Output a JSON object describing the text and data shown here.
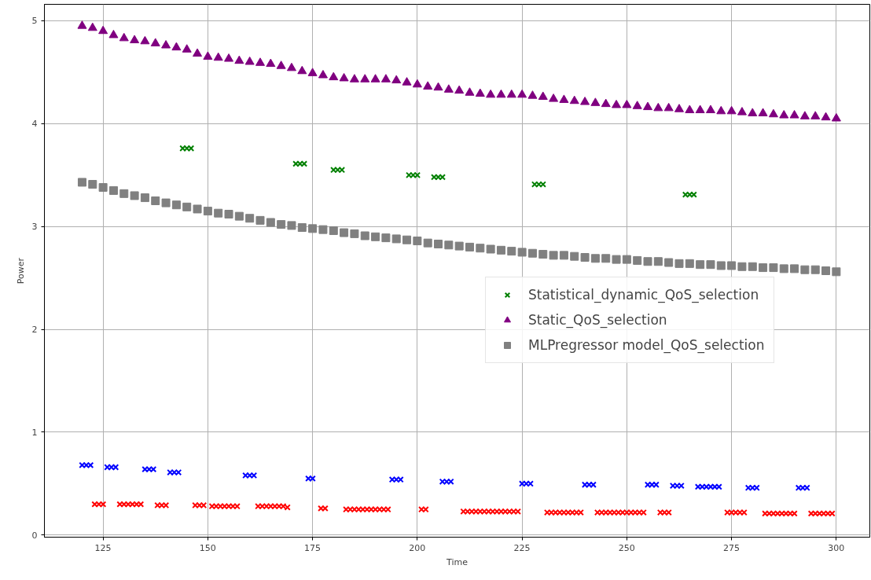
{
  "chart_data": {
    "type": "scatter",
    "xlabel": "Time",
    "ylabel": "Power",
    "xlim": [
      111,
      308
    ],
    "xticks": [
      125,
      150,
      175,
      200,
      225,
      250,
      275,
      300
    ],
    "ylim": [
      -0.02,
      5.16
    ],
    "yticks": [
      0,
      1,
      2,
      3,
      4,
      5
    ],
    "grid": true,
    "legend": "right",
    "series": [
      {
        "name": "Statistical_dynamic_QoS_selection",
        "marker": "cross",
        "x": [
          144,
          145,
          146,
          171,
          172,
          173,
          180,
          181,
          182,
          198,
          199,
          200,
          204,
          205,
          206,
          228,
          229,
          230,
          264,
          265,
          266,
          120,
          121,
          122,
          126,
          127,
          128,
          135,
          136,
          137,
          141,
          142,
          143,
          159,
          160,
          161,
          174,
          175,
          194,
          195,
          196,
          206,
          207,
          208,
          225,
          226,
          227,
          240,
          241,
          242,
          255,
          256,
          257,
          261,
          262,
          263,
          267,
          268,
          269,
          270,
          271,
          272,
          279,
          280,
          281,
          291,
          292,
          293,
          123,
          124,
          125,
          129,
          130,
          131,
          132,
          133,
          134,
          138,
          139,
          140,
          147,
          148,
          149,
          151,
          152,
          153,
          154,
          155,
          156,
          157,
          162,
          163,
          164,
          165,
          166,
          167,
          168,
          169,
          177,
          178,
          183,
          184,
          185,
          186,
          187,
          188,
          189,
          190,
          191,
          192,
          193,
          201,
          202,
          211,
          212,
          213,
          214,
          215,
          216,
          217,
          218,
          219,
          220,
          221,
          222,
          223,
          224,
          231,
          232,
          233,
          234,
          235,
          236,
          237,
          238,
          239,
          243,
          244,
          245,
          246,
          247,
          248,
          249,
          250,
          251,
          252,
          253,
          254,
          258,
          259,
          260,
          274,
          275,
          276,
          277,
          278,
          283,
          284,
          285,
          286,
          287,
          288,
          289,
          290,
          294,
          295,
          296,
          297,
          298,
          299
        ],
        "values": [
          3.76,
          3.76,
          3.76,
          3.61,
          3.61,
          3.61,
          3.55,
          3.55,
          3.55,
          3.5,
          3.5,
          3.5,
          3.48,
          3.48,
          3.48,
          3.41,
          3.41,
          3.41,
          3.31,
          3.31,
          3.31,
          0.68,
          0.68,
          0.68,
          0.66,
          0.66,
          0.66,
          0.64,
          0.64,
          0.64,
          0.61,
          0.61,
          0.61,
          0.58,
          0.58,
          0.58,
          0.55,
          0.55,
          0.54,
          0.54,
          0.54,
          0.52,
          0.52,
          0.52,
          0.5,
          0.5,
          0.5,
          0.49,
          0.49,
          0.49,
          0.49,
          0.49,
          0.49,
          0.48,
          0.48,
          0.48,
          0.47,
          0.47,
          0.47,
          0.47,
          0.47,
          0.47,
          0.46,
          0.46,
          0.46,
          0.46,
          0.46,
          0.46,
          0.3,
          0.3,
          0.3,
          0.3,
          0.3,
          0.3,
          0.3,
          0.3,
          0.3,
          0.29,
          0.29,
          0.29,
          0.29,
          0.29,
          0.29,
          0.28,
          0.28,
          0.28,
          0.28,
          0.28,
          0.28,
          0.28,
          0.28,
          0.28,
          0.28,
          0.28,
          0.28,
          0.28,
          0.28,
          0.27,
          0.26,
          0.26,
          0.25,
          0.25,
          0.25,
          0.25,
          0.25,
          0.25,
          0.25,
          0.25,
          0.25,
          0.25,
          0.25,
          0.25,
          0.25,
          0.23,
          0.23,
          0.23,
          0.23,
          0.23,
          0.23,
          0.23,
          0.23,
          0.23,
          0.23,
          0.23,
          0.23,
          0.23,
          0.23,
          0.22,
          0.22,
          0.22,
          0.22,
          0.22,
          0.22,
          0.22,
          0.22,
          0.22,
          0.22,
          0.22,
          0.22,
          0.22,
          0.22,
          0.22,
          0.22,
          0.22,
          0.22,
          0.22,
          0.22,
          0.22,
          0.22,
          0.22,
          0.22,
          0.22,
          0.22,
          0.22,
          0.22,
          0.22,
          0.21,
          0.21,
          0.21,
          0.21,
          0.21,
          0.21,
          0.21,
          0.21,
          0.21,
          0.21,
          0.21,
          0.21,
          0.21,
          0.21
        ],
        "colors": [
          "#008000",
          "#008000",
          "#008000",
          "#008000",
          "#008000",
          "#008000",
          "#008000",
          "#008000",
          "#008000",
          "#008000",
          "#008000",
          "#008000",
          "#008000",
          "#008000",
          "#008000",
          "#008000",
          "#008000",
          "#008000",
          "#008000",
          "#008000",
          "#008000",
          "#0000ff",
          "#0000ff",
          "#0000ff",
          "#0000ff",
          "#0000ff",
          "#0000ff",
          "#0000ff",
          "#0000ff",
          "#0000ff",
          "#0000ff",
          "#0000ff",
          "#0000ff",
          "#0000ff",
          "#0000ff",
          "#0000ff",
          "#0000ff",
          "#0000ff",
          "#0000ff",
          "#0000ff",
          "#0000ff",
          "#0000ff",
          "#0000ff",
          "#0000ff",
          "#0000ff",
          "#0000ff",
          "#0000ff",
          "#0000ff",
          "#0000ff",
          "#0000ff",
          "#0000ff",
          "#0000ff",
          "#0000ff",
          "#0000ff",
          "#0000ff",
          "#0000ff",
          "#0000ff",
          "#0000ff",
          "#0000ff",
          "#0000ff",
          "#0000ff",
          "#0000ff",
          "#0000ff",
          "#0000ff",
          "#0000ff",
          "#0000ff",
          "#0000ff",
          "#0000ff",
          "#ff0000",
          "#ff0000",
          "#ff0000",
          "#ff0000",
          "#ff0000",
          "#ff0000",
          "#ff0000",
          "#ff0000",
          "#ff0000",
          "#ff0000",
          "#ff0000",
          "#ff0000",
          "#ff0000",
          "#ff0000",
          "#ff0000",
          "#ff0000",
          "#ff0000",
          "#ff0000",
          "#ff0000",
          "#ff0000",
          "#ff0000",
          "#ff0000",
          "#ff0000",
          "#ff0000",
          "#ff0000",
          "#ff0000",
          "#ff0000",
          "#ff0000",
          "#ff0000",
          "#ff0000",
          "#ff0000",
          "#ff0000",
          "#ff0000",
          "#ff0000",
          "#ff0000",
          "#ff0000",
          "#ff0000",
          "#ff0000",
          "#ff0000",
          "#ff0000",
          "#ff0000",
          "#ff0000",
          "#ff0000",
          "#ff0000",
          "#ff0000",
          "#ff0000",
          "#ff0000",
          "#ff0000",
          "#ff0000",
          "#ff0000",
          "#ff0000",
          "#ff0000",
          "#ff0000",
          "#ff0000",
          "#ff0000",
          "#ff0000",
          "#ff0000",
          "#ff0000",
          "#ff0000",
          "#ff0000",
          "#ff0000",
          "#ff0000",
          "#ff0000",
          "#ff0000",
          "#ff0000",
          "#ff0000",
          "#ff0000",
          "#ff0000",
          "#ff0000",
          "#ff0000",
          "#ff0000",
          "#ff0000",
          "#ff0000",
          "#ff0000",
          "#ff0000",
          "#ff0000",
          "#ff0000",
          "#ff0000",
          "#ff0000",
          "#ff0000",
          "#ff0000",
          "#ff0000",
          "#ff0000",
          "#ff0000",
          "#ff0000",
          "#ff0000",
          "#ff0000",
          "#ff0000",
          "#ff0000",
          "#ff0000",
          "#ff0000",
          "#ff0000",
          "#ff0000",
          "#ff0000",
          "#ff0000",
          "#ff0000",
          "#ff0000",
          "#ff0000",
          "#ff0000",
          "#ff0000",
          "#ff0000",
          "#ff0000"
        ]
      },
      {
        "name": "Static_QoS_selection",
        "marker": "triangle",
        "x": [
          120,
          122.5,
          125,
          127.5,
          130,
          132.5,
          135,
          137.5,
          140,
          142.5,
          145,
          147.5,
          150,
          152.5,
          155,
          157.5,
          160,
          162.5,
          165,
          167.5,
          170,
          172.5,
          175,
          177.5,
          180,
          182.5,
          185,
          187.5,
          190,
          192.5,
          195,
          197.5,
          200,
          202.5,
          205,
          207.5,
          210,
          212.5,
          215,
          217.5,
          220,
          222.5,
          225,
          227.5,
          230,
          232.5,
          235,
          237.5,
          240,
          242.5,
          245,
          247.5,
          250,
          252.5,
          255,
          257.5,
          260,
          262.5,
          265,
          267.5,
          270,
          272.5,
          275,
          277.5,
          280,
          282.5,
          285,
          287.5,
          290,
          292.5,
          295,
          297.5,
          300
        ],
        "values": [
          4.95,
          4.93,
          4.9,
          4.86,
          4.83,
          4.81,
          4.8,
          4.78,
          4.76,
          4.74,
          4.72,
          4.68,
          4.65,
          4.64,
          4.63,
          4.61,
          4.6,
          4.59,
          4.58,
          4.56,
          4.54,
          4.51,
          4.49,
          4.47,
          4.45,
          4.44,
          4.43,
          4.43,
          4.43,
          4.43,
          4.42,
          4.4,
          4.38,
          4.36,
          4.35,
          4.33,
          4.32,
          4.3,
          4.29,
          4.28,
          4.28,
          4.28,
          4.28,
          4.27,
          4.26,
          4.24,
          4.23,
          4.22,
          4.21,
          4.2,
          4.19,
          4.18,
          4.18,
          4.17,
          4.16,
          4.15,
          4.15,
          4.14,
          4.13,
          4.13,
          4.13,
          4.12,
          4.12,
          4.11,
          4.1,
          4.1,
          4.09,
          4.08,
          4.08,
          4.07,
          4.07,
          4.06,
          4.05
        ],
        "colors": [
          "#800080",
          "#800080",
          "#800080",
          "#800080",
          "#800080",
          "#800080",
          "#800080",
          "#800080",
          "#800080",
          "#800080",
          "#800080",
          "#800080",
          "#800080",
          "#800080",
          "#800080",
          "#800080",
          "#800080",
          "#800080",
          "#800080",
          "#800080",
          "#800080",
          "#800080",
          "#800080",
          "#800080",
          "#800080",
          "#800080",
          "#800080",
          "#800080",
          "#800080",
          "#800080",
          "#800080",
          "#800080",
          "#800080",
          "#800080",
          "#800080",
          "#800080",
          "#800080",
          "#800080",
          "#800080",
          "#800080",
          "#800080",
          "#800080",
          "#800080",
          "#800080",
          "#800080",
          "#800080",
          "#800080",
          "#800080",
          "#800080",
          "#800080",
          "#800080",
          "#800080",
          "#800080",
          "#800080",
          "#800080",
          "#800080",
          "#800080",
          "#800080",
          "#800080",
          "#800080",
          "#800080",
          "#800080",
          "#800080",
          "#800080",
          "#800080",
          "#800080",
          "#800080",
          "#800080",
          "#800080",
          "#800080",
          "#800080",
          "#800080",
          "#800080"
        ]
      },
      {
        "name": "MLPregressor model_QoS_selection",
        "marker": "square",
        "x": [
          120,
          122.5,
          125,
          127.5,
          130,
          132.5,
          135,
          137.5,
          140,
          142.5,
          145,
          147.5,
          150,
          152.5,
          155,
          157.5,
          160,
          162.5,
          165,
          167.5,
          170,
          172.5,
          175,
          177.5,
          180,
          182.5,
          185,
          187.5,
          190,
          192.5,
          195,
          197.5,
          200,
          202.5,
          205,
          207.5,
          210,
          212.5,
          215,
          217.5,
          220,
          222.5,
          225,
          227.5,
          230,
          232.5,
          235,
          237.5,
          240,
          242.5,
          245,
          247.5,
          250,
          252.5,
          255,
          257.5,
          260,
          262.5,
          265,
          267.5,
          270,
          272.5,
          275,
          277.5,
          280,
          282.5,
          285,
          287.5,
          290,
          292.5,
          295,
          297.5,
          300
        ],
        "values": [
          3.43,
          3.41,
          3.38,
          3.35,
          3.32,
          3.3,
          3.28,
          3.25,
          3.23,
          3.21,
          3.19,
          3.17,
          3.15,
          3.13,
          3.12,
          3.1,
          3.08,
          3.06,
          3.04,
          3.02,
          3.01,
          2.99,
          2.98,
          2.97,
          2.96,
          2.94,
          2.93,
          2.91,
          2.9,
          2.89,
          2.88,
          2.87,
          2.86,
          2.84,
          2.83,
          2.82,
          2.81,
          2.8,
          2.79,
          2.78,
          2.77,
          2.76,
          2.75,
          2.74,
          2.73,
          2.72,
          2.72,
          2.71,
          2.7,
          2.69,
          2.69,
          2.68,
          2.68,
          2.67,
          2.66,
          2.66,
          2.65,
          2.64,
          2.64,
          2.63,
          2.63,
          2.62,
          2.62,
          2.61,
          2.61,
          2.6,
          2.6,
          2.59,
          2.59,
          2.58,
          2.58,
          2.57,
          2.56
        ],
        "colors": [
          "#808080",
          "#808080",
          "#808080",
          "#808080",
          "#808080",
          "#808080",
          "#808080",
          "#808080",
          "#808080",
          "#808080",
          "#808080",
          "#808080",
          "#808080",
          "#808080",
          "#808080",
          "#808080",
          "#808080",
          "#808080",
          "#808080",
          "#808080",
          "#808080",
          "#808080",
          "#808080",
          "#808080",
          "#808080",
          "#808080",
          "#808080",
          "#808080",
          "#808080",
          "#808080",
          "#808080",
          "#808080",
          "#808080",
          "#808080",
          "#808080",
          "#808080",
          "#808080",
          "#808080",
          "#808080",
          "#808080",
          "#808080",
          "#808080",
          "#808080",
          "#808080",
          "#808080",
          "#808080",
          "#808080",
          "#808080",
          "#808080",
          "#808080",
          "#808080",
          "#808080",
          "#808080",
          "#808080",
          "#808080",
          "#808080",
          "#808080",
          "#808080",
          "#808080",
          "#808080",
          "#808080",
          "#808080",
          "#808080",
          "#808080",
          "#808080",
          "#808080",
          "#808080",
          "#808080",
          "#808080",
          "#808080",
          "#808080",
          "#808080",
          "#808080"
        ]
      }
    ]
  }
}
